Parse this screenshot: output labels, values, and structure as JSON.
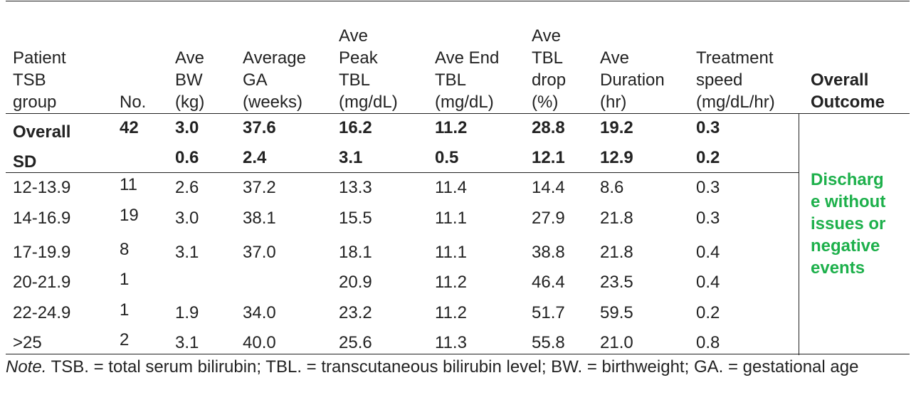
{
  "headers": [
    {
      "lines": [
        "Patient",
        "TSB",
        "group"
      ]
    },
    {
      "lines": [
        "No."
      ]
    },
    {
      "lines": [
        "Ave",
        "BW",
        "(kg)"
      ]
    },
    {
      "lines": [
        "Average",
        "GA",
        "(weeks)"
      ]
    },
    {
      "lines": [
        "Ave",
        "Peak",
        "TBL",
        "(mg/dL)"
      ]
    },
    {
      "lines": [
        "Ave End",
        "TBL",
        "(mg/dL)"
      ]
    },
    {
      "lines": [
        "Ave",
        "TBL",
        "drop",
        "(%)"
      ]
    },
    {
      "lines": [
        "Ave",
        "Duration",
        "(hr)"
      ]
    },
    {
      "lines": [
        "Treatment",
        "speed",
        "(mg/dL/hr)"
      ]
    }
  ],
  "outcome_header": [
    "Overall",
    "Outcome"
  ],
  "summary_rows": [
    {
      "label": "Overall",
      "no": "42",
      "bw": "3.0",
      "ga": "37.6",
      "peak": "16.2",
      "end": "11.2",
      "drop": "28.8",
      "dur": "19.2",
      "speed": "0.3"
    },
    {
      "label": "SD",
      "no": "",
      "bw": "0.6",
      "ga": "2.4",
      "peak": "3.1",
      "end": "0.5",
      "drop": "12.1",
      "dur": "12.9",
      "speed": "0.2"
    }
  ],
  "rows": [
    {
      "label": "12-13.9",
      "no": "11",
      "bw": "2.6",
      "ga": "37.2",
      "peak": "13.3",
      "end": "11.4",
      "drop": "14.4",
      "dur": "8.6",
      "speed": "0.3"
    },
    {
      "label": "14-16.9",
      "no": "19",
      "bw": "3.0",
      "ga": "38.1",
      "peak": "15.5",
      "end": "11.1",
      "drop": "27.9",
      "dur": "21.8",
      "speed": "0.3"
    },
    {
      "label": "17-19.9",
      "no": "8",
      "bw": "3.1",
      "ga": "37.0",
      "peak": "18.1",
      "end": "11.1",
      "drop": "38.8",
      "dur": "21.8",
      "speed": "0.4"
    },
    {
      "label": "20-21.9",
      "no": "1",
      "bw": "",
      "ga": "",
      "peak": "20.9",
      "end": "11.2",
      "drop": "46.4",
      "dur": "23.5",
      "speed": "0.4"
    },
    {
      "label": "22-24.9",
      "no": "1",
      "bw": "1.9",
      "ga": "34.0",
      "peak": "23.2",
      "end": "11.2",
      "drop": "51.7",
      "dur": "59.5",
      "speed": "0.2"
    },
    {
      "label": ">25",
      "no": "2",
      "bw": "3.1",
      "ga": "40.0",
      "peak": "25.6",
      "end": "11.3",
      "drop": "55.8",
      "dur": "21.0",
      "speed": "0.8"
    }
  ],
  "outcome_text": [
    "Discharg",
    "e without",
    "issues or",
    "negative",
    "events"
  ],
  "outcome_color": "#1db04b",
  "note": {
    "lead": "Note.",
    "text": " TSB. = total serum bilirubin; TBL. = transcutaneous bilirubin level; BW. = birthweight; GA. = gestational age"
  }
}
